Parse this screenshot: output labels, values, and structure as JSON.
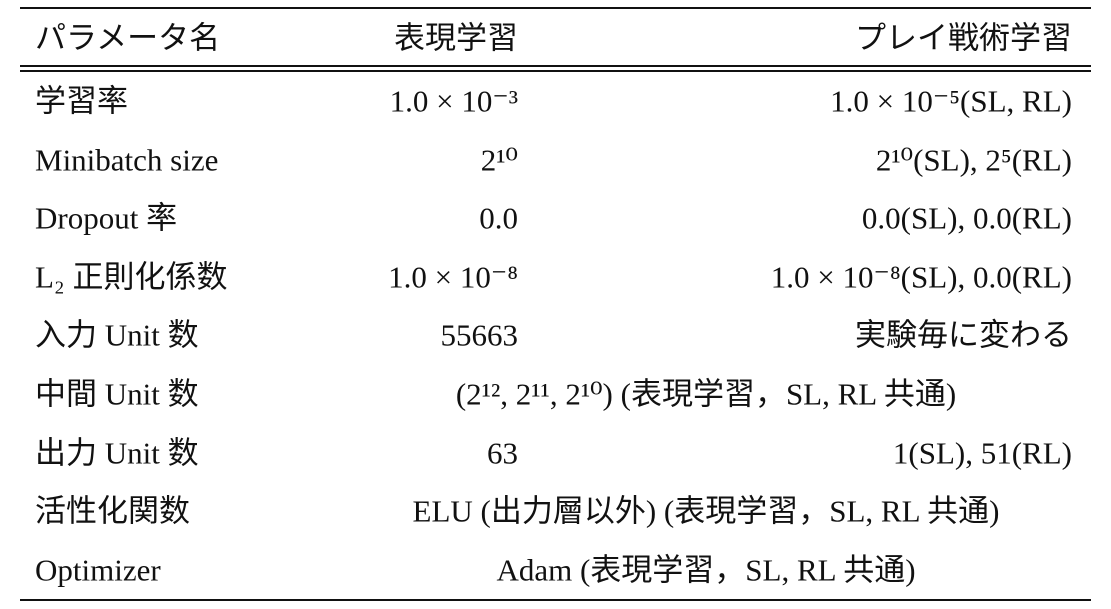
{
  "table": {
    "header": [
      "パラメータ名",
      "表現学習",
      "プレイ戦術学習"
    ],
    "rows": [
      [
        "学習率",
        "1.0 × 10⁻³",
        "1.0 × 10⁻⁵(SL, RL)"
      ],
      [
        "Minibatch size",
        "2¹⁰",
        "2¹⁰(SL), 2⁵(RL)"
      ],
      [
        "Dropout 率",
        "0.0",
        "0.0(SL), 0.0(RL)"
      ],
      [
        "L₂ 正則化係数",
        "1.0 × 10⁻⁸",
        "1.0 × 10⁻⁸(SL), 0.0(RL)"
      ],
      [
        "入力 Unit 数",
        "55663",
        "実験毎に変わる"
      ],
      [
        "中間 Unit 数",
        "(2¹², 2¹¹, 2¹⁰) (表現学習，SL, RL 共通)"
      ],
      [
        "出力 Unit 数",
        "63",
        "1(SL), 51(RL)"
      ],
      [
        "活性化関数",
        "ELU (出力層以外) (表現学習，SL, RL 共通)"
      ],
      [
        "Optimizer",
        "Adam (表現学習，SL, RL 共通)"
      ]
    ]
  }
}
